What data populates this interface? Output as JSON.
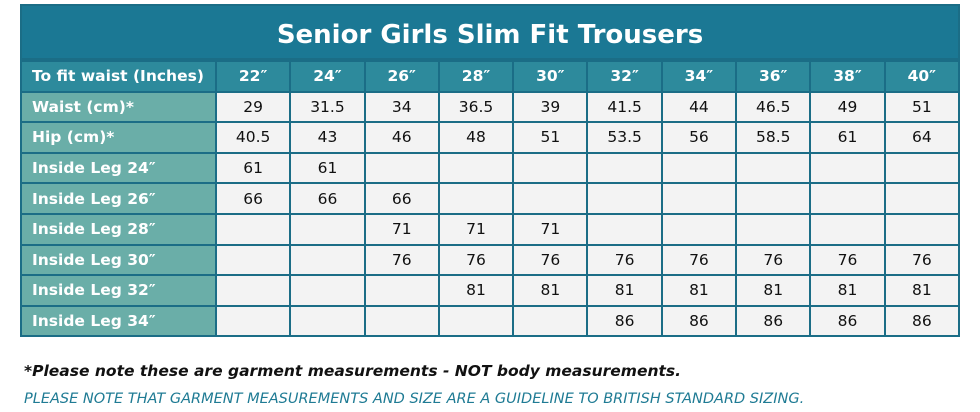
{
  "header": {
    "title": "Senior Girls Slim Fit Trousers"
  },
  "table": {
    "columns": [
      "To fit waist (Inches)",
      "22″",
      "24″",
      "26″",
      "28″",
      "30″",
      "32″",
      "34″",
      "36″",
      "38″",
      "40″"
    ],
    "rows": [
      [
        "Waist (cm)*",
        "29",
        "31.5",
        "34",
        "36.5",
        "39",
        "41.5",
        "44",
        "46.5",
        "49",
        "51"
      ],
      [
        "Hip (cm)*",
        "40.5",
        "43",
        "46",
        "48",
        "51",
        "53.5",
        "56",
        "58.5",
        "61",
        "64"
      ],
      [
        "Inside Leg 24″",
        "61",
        "61",
        null,
        null,
        null,
        null,
        null,
        null,
        null,
        null
      ],
      [
        "Inside Leg 26″",
        "66",
        "66",
        "66",
        null,
        null,
        null,
        null,
        null,
        null,
        null
      ],
      [
        "Inside Leg 28″",
        null,
        null,
        "71",
        "71",
        "71",
        null,
        null,
        null,
        null,
        null
      ],
      [
        "Inside Leg 30″",
        null,
        null,
        "76",
        "76",
        "76",
        "76",
        "76",
        "76",
        "76",
        "76"
      ],
      [
        "Inside Leg 32″",
        null,
        null,
        null,
        "81",
        "81",
        "81",
        "81",
        "81",
        "81",
        "81"
      ],
      [
        "Inside Leg 34″",
        null,
        null,
        null,
        null,
        null,
        "86",
        "86",
        "86",
        "86",
        "86"
      ]
    ]
  },
  "notes": [
    "*Please note these are garment measurements - NOT body measurements.",
    "PLEASE NOTE THAT GARMENT MEASUREMENTS AND SIZE ARE A GUIDELINE TO BRITISH STANDARD SIZING."
  ]
}
